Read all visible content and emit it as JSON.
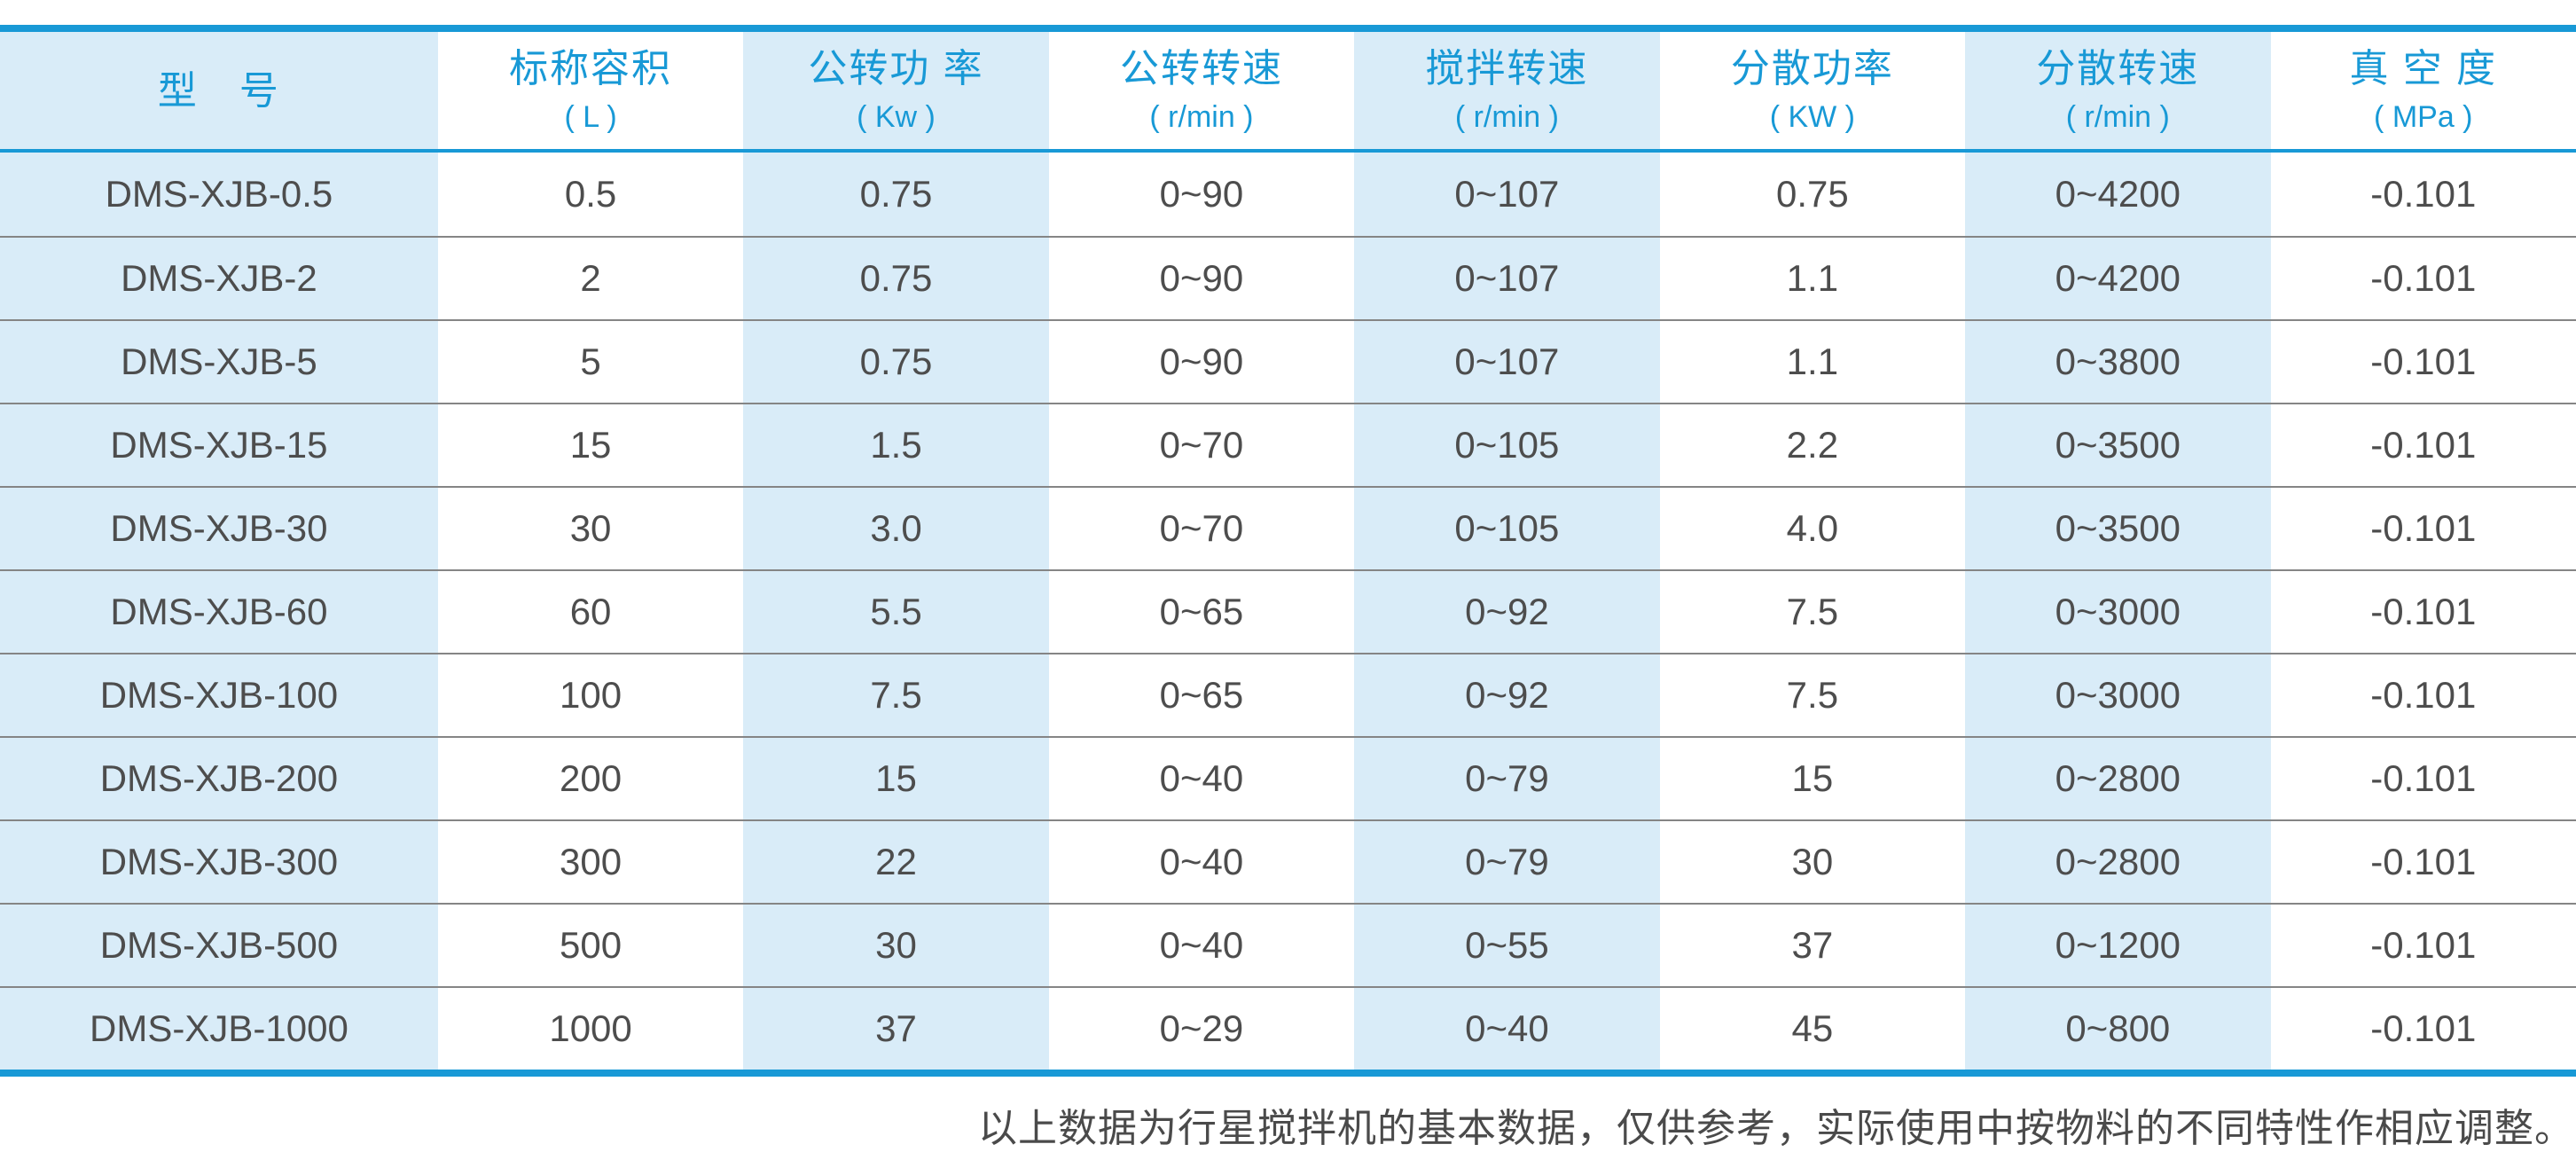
{
  "colors": {
    "accent_blue": "#1899d6",
    "stripe_blue": "#d9ecf8",
    "data_text": "#4d4d4d",
    "separator_gray": "#858585"
  },
  "table": {
    "columns": [
      {
        "title": "型　号",
        "unit": ""
      },
      {
        "title": "标称容积",
        "unit": "( L )"
      },
      {
        "title": "公转功 率",
        "unit": "( Kw )"
      },
      {
        "title": "公转转速",
        "unit": "( r/min )"
      },
      {
        "title": "搅拌转速",
        "unit": "( r/min )"
      },
      {
        "title": "分散功率",
        "unit": "( KW )"
      },
      {
        "title": "分散转速",
        "unit": "( r/min )"
      },
      {
        "title": "真 空 度",
        "unit": "( MPa )"
      }
    ],
    "rows": [
      [
        "DMS-XJB-0.5",
        "0.5",
        "0.75",
        "0~90",
        "0~107",
        "0.75",
        "0~4200",
        "-0.101"
      ],
      [
        "DMS-XJB-2",
        "2",
        "0.75",
        "0~90",
        "0~107",
        "1.1",
        "0~4200",
        "-0.101"
      ],
      [
        "DMS-XJB-5",
        "5",
        "0.75",
        "0~90",
        "0~107",
        "1.1",
        "0~3800",
        "-0.101"
      ],
      [
        "DMS-XJB-15",
        "15",
        "1.5",
        "0~70",
        "0~105",
        "2.2",
        "0~3500",
        "-0.101"
      ],
      [
        "DMS-XJB-30",
        "30",
        "3.0",
        "0~70",
        "0~105",
        "4.0",
        "0~3500",
        "-0.101"
      ],
      [
        "DMS-XJB-60",
        "60",
        "5.5",
        "0~65",
        "0~92",
        "7.5",
        "0~3000",
        "-0.101"
      ],
      [
        "DMS-XJB-100",
        "100",
        "7.5",
        "0~65",
        "0~92",
        "7.5",
        "0~3000",
        "-0.101"
      ],
      [
        "DMS-XJB-200",
        "200",
        "15",
        "0~40",
        "0~79",
        "15",
        "0~2800",
        "-0.101"
      ],
      [
        "DMS-XJB-300",
        "300",
        "22",
        "0~40",
        "0~79",
        "30",
        "0~2800",
        "-0.101"
      ],
      [
        "DMS-XJB-500",
        "500",
        "30",
        "0~40",
        "0~55",
        "37",
        "0~1200",
        "-0.101"
      ],
      [
        "DMS-XJB-1000",
        "1000",
        "37",
        "0~29",
        "0~40",
        "45",
        "0~800",
        "-0.101"
      ]
    ]
  },
  "footer": {
    "note": "以上数据为行星搅拌机的基本数据，仅供参考，实际使用中按物料的不同特性作相应调整。"
  }
}
